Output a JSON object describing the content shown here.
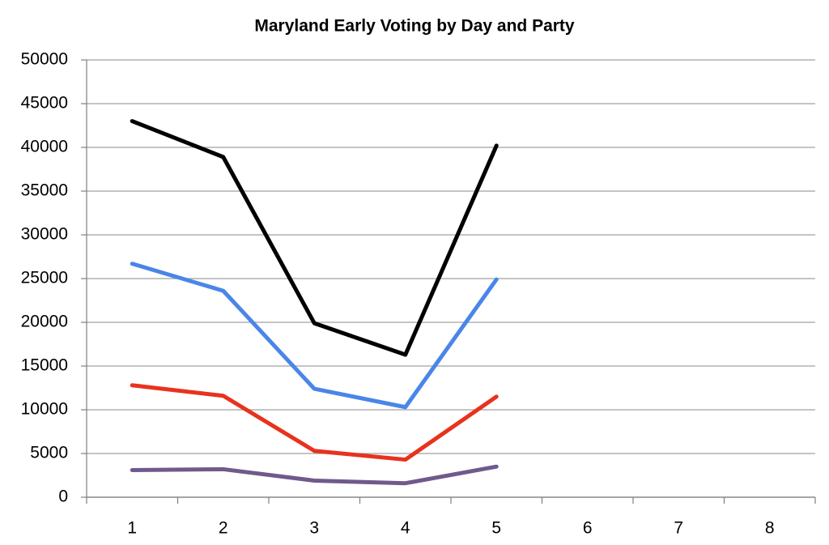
{
  "chart_data": {
    "type": "line",
    "title": "Maryland Early Voting by Day and Party",
    "categories": [
      "1",
      "2",
      "3",
      "4",
      "5",
      "6",
      "7",
      "8"
    ],
    "series": [
      {
        "color": "#000000",
        "values": [
          43000,
          38900,
          19900,
          16300,
          40200,
          null,
          null,
          null
        ]
      },
      {
        "color": "#4a86e8",
        "values": [
          26700,
          23600,
          12400,
          10300,
          24900,
          null,
          null,
          null
        ]
      },
      {
        "color": "#e8321e",
        "values": [
          12800,
          11600,
          5300,
          4300,
          11500,
          null,
          null,
          null
        ]
      },
      {
        "color": "#6f5a8c",
        "values": [
          3100,
          3200,
          1900,
          1600,
          3500,
          null,
          null,
          null
        ]
      }
    ],
    "ylim": [
      0,
      50000
    ],
    "yticks": [
      0,
      5000,
      10000,
      15000,
      20000,
      25000,
      30000,
      35000,
      40000,
      45000,
      50000
    ],
    "grid": true
  }
}
